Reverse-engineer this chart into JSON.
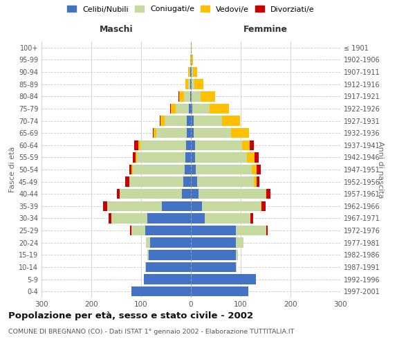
{
  "age_groups": [
    "0-4",
    "5-9",
    "10-14",
    "15-19",
    "20-24",
    "25-29",
    "30-34",
    "35-39",
    "40-44",
    "45-49",
    "50-54",
    "55-59",
    "60-64",
    "65-69",
    "70-74",
    "75-79",
    "80-84",
    "85-89",
    "90-94",
    "95-99",
    "100+"
  ],
  "birth_years": [
    "1997-2001",
    "1992-1996",
    "1987-1991",
    "1982-1986",
    "1977-1981",
    "1972-1976",
    "1967-1971",
    "1962-1966",
    "1957-1961",
    "1952-1956",
    "1947-1951",
    "1942-1946",
    "1937-1941",
    "1932-1936",
    "1927-1931",
    "1922-1926",
    "1917-1921",
    "1912-1916",
    "1907-1911",
    "1902-1906",
    "≤ 1901"
  ],
  "males": {
    "celibi": [
      120,
      95,
      90,
      85,
      82,
      92,
      88,
      58,
      18,
      15,
      12,
      11,
      10,
      8,
      8,
      4,
      2,
      1,
      1,
      0,
      0
    ],
    "coniugati": [
      0,
      0,
      1,
      2,
      8,
      28,
      72,
      110,
      125,
      108,
      105,
      98,
      92,
      62,
      45,
      26,
      12,
      4,
      2,
      0,
      0
    ],
    "vedovi": [
      0,
      0,
      0,
      0,
      0,
      0,
      0,
      0,
      0,
      1,
      2,
      2,
      4,
      5,
      8,
      10,
      10,
      6,
      3,
      1,
      0
    ],
    "divorziati": [
      0,
      0,
      0,
      0,
      0,
      2,
      5,
      8,
      5,
      8,
      5,
      6,
      8,
      2,
      1,
      1,
      1,
      0,
      0,
      0,
      0
    ]
  },
  "females": {
    "nubili": [
      115,
      130,
      90,
      90,
      90,
      90,
      28,
      22,
      15,
      12,
      10,
      8,
      8,
      6,
      5,
      3,
      2,
      1,
      1,
      0,
      0
    ],
    "coniugate": [
      0,
      0,
      2,
      5,
      15,
      62,
      92,
      118,
      135,
      115,
      112,
      105,
      95,
      75,
      58,
      35,
      18,
      6,
      3,
      1,
      0
    ],
    "vedove": [
      0,
      0,
      0,
      0,
      0,
      0,
      0,
      2,
      2,
      5,
      10,
      15,
      15,
      35,
      35,
      38,
      28,
      18,
      8,
      3,
      2
    ],
    "divorziate": [
      0,
      0,
      0,
      0,
      0,
      2,
      5,
      8,
      8,
      5,
      8,
      8,
      8,
      1,
      1,
      0,
      0,
      0,
      0,
      0,
      0
    ]
  },
  "colors": {
    "celibi_nubili": "#4472c4",
    "coniugati": "#c5d9a0",
    "vedovi": "#ffc000",
    "divorziati": "#cc0000"
  },
  "xlim": 300,
  "title": "Popolazione per età, sesso e stato civile - 2002",
  "subtitle": "COMUNE DI BREGNANO (CO) - Dati ISTAT 1° gennaio 2002 - Elaborazione TUTTITALIA.IT",
  "xlabel_left": "Maschi",
  "xlabel_right": "Femmine",
  "ylabel_left": "Fasce di età",
  "ylabel_right": "Anni di nascita"
}
